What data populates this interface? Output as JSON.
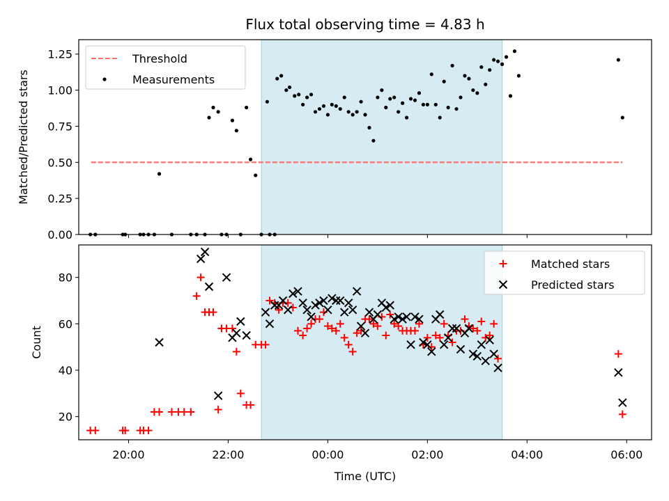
{
  "title": "Flux total observing time = 4.83 h",
  "chart_data": [
    {
      "type": "scatter",
      "panel": "top",
      "ylabel": "Matched/Predicted stars",
      "xlabel": "",
      "xlim": [
        "19:00",
        "06:30"
      ],
      "ylim": [
        0,
        1.35
      ],
      "yticks": [
        0.0,
        0.25,
        0.5,
        0.75,
        1.0,
        1.25
      ],
      "ytick_labels": [
        "0.00",
        "0.25",
        "0.50",
        "0.75",
        "1.00",
        "1.25"
      ],
      "shaded_span": [
        "22:40",
        "03:30"
      ],
      "legend_position": "top-left",
      "series": [
        {
          "name": "Threshold",
          "kind": "dashed-line",
          "color": "#ff7070",
          "points": [
            [
              "19:15",
              0.5
            ],
            [
              "05:55",
              0.5
            ]
          ]
        },
        {
          "name": "Measurements",
          "kind": "dots",
          "color": "#000000",
          "points": [
            [
              "19:14",
              0
            ],
            [
              "19:20",
              0
            ],
            [
              "19:53",
              0
            ],
            [
              "19:56",
              0
            ],
            [
              "20:14",
              0
            ],
            [
              "20:18",
              0
            ],
            [
              "20:24",
              0
            ],
            [
              "20:31",
              0
            ],
            [
              "20:37",
              0.42
            ],
            [
              "20:52",
              0
            ],
            [
              "21:15",
              0
            ],
            [
              "21:22",
              0
            ],
            [
              "21:32",
              0
            ],
            [
              "21:37",
              0.81
            ],
            [
              "21:42",
              0.88
            ],
            [
              "21:48",
              0.85
            ],
            [
              "21:52",
              0
            ],
            [
              "21:58",
              0
            ],
            [
              "22:05",
              0.79
            ],
            [
              "22:10",
              0.72
            ],
            [
              "22:15",
              0
            ],
            [
              "22:22",
              0.88
            ],
            [
              "22:27",
              0.52
            ],
            [
              "22:33",
              0.41
            ],
            [
              "22:40",
              0
            ],
            [
              "22:47",
              0.92
            ],
            [
              "22:50",
              0
            ],
            [
              "22:56",
              0
            ],
            [
              "22:59",
              1.08
            ],
            [
              "23:04",
              1.1
            ],
            [
              "23:10",
              1.0
            ],
            [
              "23:14",
              1.02
            ],
            [
              "23:20",
              0.96
            ],
            [
              "23:25",
              0.97
            ],
            [
              "23:30",
              0.9
            ],
            [
              "23:35",
              0.95
            ],
            [
              "23:40",
              0.97
            ],
            [
              "23:45",
              0.85
            ],
            [
              "23:50",
              0.87
            ],
            [
              "23:55",
              0.89
            ],
            [
              "00:00",
              0.83
            ],
            [
              "00:05",
              0.9
            ],
            [
              "00:10",
              0.89
            ],
            [
              "00:15",
              0.87
            ],
            [
              "00:20",
              0.95
            ],
            [
              "00:25",
              0.85
            ],
            [
              "00:30",
              0.83
            ],
            [
              "00:35",
              0.85
            ],
            [
              "00:40",
              0.92
            ],
            [
              "00:45",
              0.83
            ],
            [
              "00:50",
              0.74
            ],
            [
              "00:55",
              0.65
            ],
            [
              "01:00",
              0.95
            ],
            [
              "01:05",
              1.0
            ],
            [
              "01:10",
              0.88
            ],
            [
              "01:15",
              0.94
            ],
            [
              "01:20",
              0.95
            ],
            [
              "01:25",
              0.85
            ],
            [
              "01:30",
              0.91
            ],
            [
              "01:35",
              0.81
            ],
            [
              "01:40",
              0.94
            ],
            [
              "01:45",
              0.93
            ],
            [
              "01:50",
              0.98
            ],
            [
              "01:55",
              0.9
            ],
            [
              "02:00",
              0.9
            ],
            [
              "02:05",
              1.11
            ],
            [
              "02:10",
              0.9
            ],
            [
              "02:15",
              0.81
            ],
            [
              "02:20",
              1.06
            ],
            [
              "02:25",
              0.88
            ],
            [
              "02:30",
              1.17
            ],
            [
              "02:35",
              0.87
            ],
            [
              "02:40",
              0.95
            ],
            [
              "02:45",
              1.1
            ],
            [
              "02:50",
              1.08
            ],
            [
              "02:55",
              1.0
            ],
            [
              "03:00",
              0.98
            ],
            [
              "03:05",
              1.16
            ],
            [
              "03:10",
              1.04
            ],
            [
              "03:15",
              1.14
            ],
            [
              "03:20",
              1.21
            ],
            [
              "03:25",
              1.2
            ],
            [
              "03:30",
              1.18
            ],
            [
              "03:35",
              1.23
            ],
            [
              "03:40",
              0.96
            ],
            [
              "03:45",
              1.27
            ],
            [
              "03:50",
              1.1
            ],
            [
              "05:50",
              1.21
            ],
            [
              "05:55",
              0.81
            ]
          ]
        }
      ]
    },
    {
      "type": "scatter",
      "panel": "bottom",
      "xlabel": "Time (UTC)",
      "ylabel": "Count",
      "xlim": [
        "19:00",
        "06:30"
      ],
      "ylim": [
        10,
        94
      ],
      "xticks": [
        "20:00",
        "22:00",
        "00:00",
        "02:00",
        "04:00",
        "06:00"
      ],
      "yticks": [
        20,
        40,
        60,
        80
      ],
      "ytick_labels": [
        "20",
        "40",
        "60",
        "80"
      ],
      "shaded_span": [
        "22:40",
        "03:30"
      ],
      "legend_position": "top-right",
      "series": [
        {
          "name": "Matched stars",
          "kind": "plus",
          "color": "#ff0000",
          "points": [
            [
              "19:14",
              14
            ],
            [
              "19:20",
              14
            ],
            [
              "19:53",
              14
            ],
            [
              "19:56",
              14
            ],
            [
              "20:14",
              14
            ],
            [
              "20:18",
              14
            ],
            [
              "20:24",
              14
            ],
            [
              "20:31",
              22
            ],
            [
              "20:37",
              22
            ],
            [
              "20:52",
              22
            ],
            [
              "21:00",
              22
            ],
            [
              "21:07",
              22
            ],
            [
              "21:15",
              22
            ],
            [
              "21:22",
              72
            ],
            [
              "21:27",
              80
            ],
            [
              "21:32",
              65
            ],
            [
              "21:37",
              65
            ],
            [
              "21:42",
              65
            ],
            [
              "21:48",
              23
            ],
            [
              "21:52",
              58
            ],
            [
              "21:58",
              58
            ],
            [
              "22:05",
              58
            ],
            [
              "22:10",
              48
            ],
            [
              "22:15",
              30
            ],
            [
              "22:22",
              25
            ],
            [
              "22:27",
              25
            ],
            [
              "22:33",
              51
            ],
            [
              "22:40",
              51
            ],
            [
              "22:45",
              51
            ],
            [
              "22:50",
              70
            ],
            [
              "22:56",
              69
            ],
            [
              "23:01",
              66
            ],
            [
              "23:06",
              69
            ],
            [
              "23:12",
              69
            ],
            [
              "23:18",
              67
            ],
            [
              "23:24",
              57
            ],
            [
              "23:30",
              55
            ],
            [
              "23:35",
              58
            ],
            [
              "23:40",
              60
            ],
            [
              "23:45",
              62
            ],
            [
              "23:50",
              62
            ],
            [
              "23:55",
              65
            ],
            [
              "00:00",
              59
            ],
            [
              "00:05",
              58
            ],
            [
              "00:10",
              57
            ],
            [
              "00:15",
              60
            ],
            [
              "00:20",
              54
            ],
            [
              "00:25",
              51
            ],
            [
              "00:30",
              48
            ],
            [
              "00:35",
              56
            ],
            [
              "00:40",
              57
            ],
            [
              "00:45",
              62
            ],
            [
              "00:50",
              62
            ],
            [
              "00:55",
              60
            ],
            [
              "01:00",
              59
            ],
            [
              "01:05",
              63
            ],
            [
              "01:10",
              55
            ],
            [
              "01:15",
              64
            ],
            [
              "01:20",
              60
            ],
            [
              "01:25",
              59
            ],
            [
              "01:30",
              57
            ],
            [
              "01:35",
              57
            ],
            [
              "01:40",
              57
            ],
            [
              "01:45",
              57
            ],
            [
              "01:50",
              60
            ],
            [
              "01:55",
              51
            ],
            [
              "02:00",
              54
            ],
            [
              "02:05",
              50
            ],
            [
              "02:10",
              55
            ],
            [
              "02:15",
              54
            ],
            [
              "02:20",
              60
            ],
            [
              "02:25",
              55
            ],
            [
              "02:30",
              52
            ],
            [
              "02:35",
              57
            ],
            [
              "02:40",
              57
            ],
            [
              "02:45",
              62
            ],
            [
              "02:50",
              59
            ],
            [
              "02:55",
              58
            ],
            [
              "03:00",
              57
            ],
            [
              "03:05",
              61
            ],
            [
              "03:10",
              54
            ],
            [
              "03:15",
              55
            ],
            [
              "03:20",
              60
            ],
            [
              "03:25",
              45
            ],
            [
              "05:50",
              47
            ],
            [
              "05:55",
              21
            ]
          ]
        },
        {
          "name": "Predicted stars",
          "kind": "x",
          "color": "#000000",
          "points": [
            [
              "20:37",
              52
            ],
            [
              "21:27",
              88
            ],
            [
              "21:32",
              91
            ],
            [
              "21:37",
              76
            ],
            [
              "21:48",
              29
            ],
            [
              "21:58",
              80
            ],
            [
              "22:05",
              54
            ],
            [
              "22:10",
              56
            ],
            [
              "22:15",
              61
            ],
            [
              "22:22",
              55
            ],
            [
              "22:45",
              65
            ],
            [
              "22:50",
              60
            ],
            [
              "22:56",
              68
            ],
            [
              "23:01",
              68
            ],
            [
              "23:06",
              70
            ],
            [
              "23:12",
              66
            ],
            [
              "23:18",
              73
            ],
            [
              "23:24",
              74
            ],
            [
              "23:30",
              69
            ],
            [
              "23:35",
              66
            ],
            [
              "23:40",
              63
            ],
            [
              "23:45",
              68
            ],
            [
              "23:50",
              69
            ],
            [
              "23:55",
              70
            ],
            [
              "00:00",
              66
            ],
            [
              "00:05",
              71
            ],
            [
              "00:10",
              70
            ],
            [
              "00:15",
              70
            ],
            [
              "00:20",
              65
            ],
            [
              "00:25",
              69
            ],
            [
              "00:30",
              66
            ],
            [
              "00:35",
              74
            ],
            [
              "00:40",
              59
            ],
            [
              "00:45",
              56
            ],
            [
              "00:50",
              65
            ],
            [
              "00:55",
              62
            ],
            [
              "01:00",
              64
            ],
            [
              "01:05",
              69
            ],
            [
              "01:10",
              67
            ],
            [
              "01:15",
              68
            ],
            [
              "01:20",
              62
            ],
            [
              "01:25",
              63
            ],
            [
              "01:30",
              62
            ],
            [
              "01:35",
              63
            ],
            [
              "01:40",
              51
            ],
            [
              "01:45",
              63
            ],
            [
              "01:50",
              62
            ],
            [
              "01:55",
              52
            ],
            [
              "02:00",
              51
            ],
            [
              "02:05",
              48
            ],
            [
              "02:10",
              62
            ],
            [
              "02:15",
              64
            ],
            [
              "02:20",
              51
            ],
            [
              "02:25",
              54
            ],
            [
              "02:30",
              58
            ],
            [
              "02:35",
              58
            ],
            [
              "02:40",
              49
            ],
            [
              "02:45",
              56
            ],
            [
              "02:50",
              58
            ],
            [
              "02:55",
              47
            ],
            [
              "03:00",
              46
            ],
            [
              "03:05",
              51
            ],
            [
              "03:10",
              44
            ],
            [
              "03:15",
              53
            ],
            [
              "03:20",
              47
            ],
            [
              "03:25",
              41
            ],
            [
              "05:50",
              39
            ],
            [
              "05:55",
              26
            ]
          ]
        }
      ]
    }
  ]
}
